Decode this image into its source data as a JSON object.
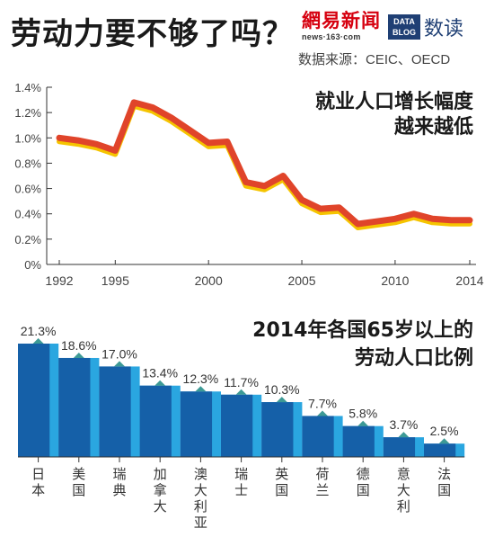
{
  "header": {
    "title": "劳动力要不够了吗？",
    "logo_cn": "網易新闻",
    "logo_url": "news·163·com",
    "datablog_line1": "DATA",
    "datablog_line2": "BLOG",
    "brand": "数读",
    "source": "数据来源：CEIC、OECD"
  },
  "colors": {
    "line_main": "#e0442a",
    "line_shadow": "#f5c400",
    "bar_dark": "#1560a8",
    "bar_light": "#2aa6e0",
    "marker": "#3d9a96"
  },
  "chart_data": [
    {
      "type": "line",
      "title_lines": [
        "就业人口增长幅度",
        "越来越低"
      ],
      "x": [
        1992,
        1993,
        1994,
        1995,
        1996,
        1997,
        1998,
        1999,
        2000,
        2001,
        2002,
        2003,
        2004,
        2005,
        2006,
        2007,
        2008,
        2009,
        2010,
        2011,
        2012,
        2013,
        2014
      ],
      "y": [
        1.0,
        0.98,
        0.95,
        0.9,
        1.28,
        1.24,
        1.16,
        1.06,
        0.96,
        0.97,
        0.65,
        0.62,
        0.7,
        0.51,
        0.44,
        0.45,
        0.32,
        0.34,
        0.36,
        0.4,
        0.36,
        0.35,
        0.35
      ],
      "xticks": [
        "1992",
        "1995",
        "2000",
        "2005",
        "2010",
        "2014"
      ],
      "yticks": [
        "0%",
        "0.2%",
        "0.4%",
        "0.6%",
        "0.8%",
        "1.0%",
        "1.2%",
        "1.4%"
      ],
      "xlim": [
        1992,
        2014
      ],
      "ylim": [
        0,
        1.4
      ],
      "grid": false
    },
    {
      "type": "bar",
      "title_lines": [
        "2014年各国65岁以上的",
        "劳动人口比例"
      ],
      "categories": [
        "日本",
        "美国",
        "瑞典",
        "加拿大",
        "澳大利亚",
        "瑞士",
        "英国",
        "荷兰",
        "德国",
        "意大利",
        "法国"
      ],
      "values": [
        21.3,
        18.6,
        17.0,
        13.4,
        12.3,
        11.7,
        10.3,
        7.7,
        5.8,
        3.7,
        2.5
      ],
      "labels": [
        "21.3%",
        "18.6%",
        "17.0%",
        "13.4%",
        "12.3%",
        "11.7%",
        "10.3%",
        "7.7%",
        "5.8%",
        "3.7%",
        "2.5%"
      ]
    }
  ]
}
